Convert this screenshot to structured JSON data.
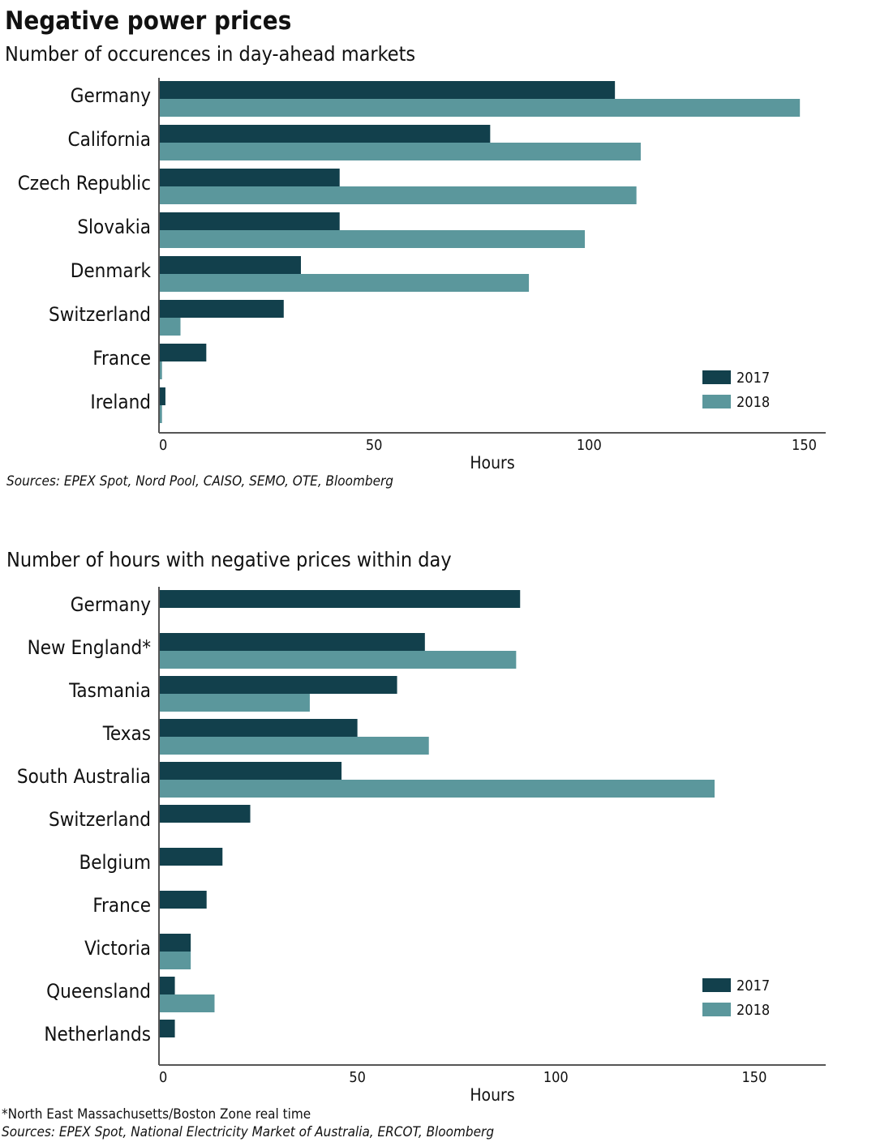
{
  "header": {
    "title": "Negative power prices"
  },
  "colors": {
    "y2017": "#12404c",
    "y2018": "#5b979c",
    "axis": "#555555"
  },
  "chart_data": [
    {
      "type": "bar",
      "orientation": "horizontal",
      "subtitle": "Number of occurences in day-ahead markets",
      "categories": [
        "Germany",
        "California",
        "Czech Republic",
        "Slovakia",
        "Denmark",
        "Switzerland",
        "France",
        "Ireland"
      ],
      "series": [
        {
          "name": "2017",
          "values": [
            106,
            77,
            42,
            42,
            33,
            29,
            11,
            1.5
          ]
        },
        {
          "name": "2018",
          "values": [
            149,
            112,
            111,
            99,
            86,
            5,
            0.7,
            0.7
          ]
        }
      ],
      "xlabel": "Hours",
      "xlim": [
        0,
        155
      ],
      "xticks": [
        0,
        50,
        100,
        150
      ],
      "legend_position": "bottom-right",
      "source": "Sources: EPEX Spot, Nord Pool, CAISO, SEMO, OTE, Bloomberg"
    },
    {
      "type": "bar",
      "orientation": "horizontal",
      "subtitle": "Number of hours with negative prices within day",
      "categories": [
        "Germany",
        "New England*",
        "Tasmania",
        "Texas",
        "South Australia",
        "Switzerland",
        "Belgium",
        "France",
        "Victoria",
        "Queensland",
        "Netherlands"
      ],
      "series": [
        {
          "name": "2017",
          "values": [
            91,
            67,
            60,
            50,
            46,
            23,
            16,
            12,
            8,
            4,
            4
          ]
        },
        {
          "name": "2018",
          "values": [
            null,
            90,
            38,
            68,
            140,
            null,
            null,
            null,
            8,
            14,
            null
          ]
        }
      ],
      "xlabel": "Hours",
      "xlim": [
        0,
        168
      ],
      "xticks": [
        0,
        50,
        100,
        150
      ],
      "legend_position": "bottom-right",
      "footnote": "*North East Massachusetts/Boston Zone real time",
      "source": "Sources: EPEX Spot, National Electricity Market of Australia, ERCOT, Bloomberg"
    }
  ]
}
